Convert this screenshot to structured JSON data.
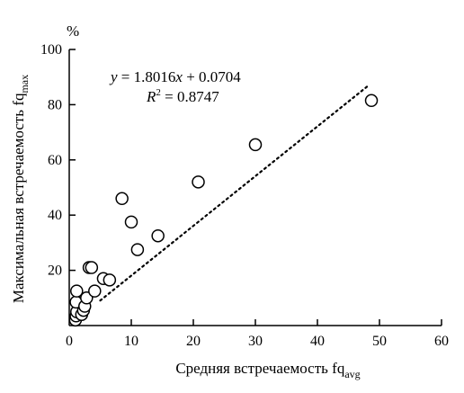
{
  "chart_data": {
    "type": "scatter",
    "title": "",
    "xlabel": "Средняя встречаемость fq",
    "xlabel_sub": "avg",
    "ylabel": "Максимальная встречаемость fq",
    "ylabel_sub": "max",
    "y_unit": "%",
    "xlim": [
      0,
      60
    ],
    "ylim": [
      0,
      100
    ],
    "x_ticks": [
      "0",
      "10",
      "20",
      "30",
      "40",
      "50",
      "60"
    ],
    "y_ticks": [
      "20",
      "40",
      "60",
      "80",
      "100"
    ],
    "grid": false,
    "points": [
      {
        "x": 1.0,
        "y": 2.0
      },
      {
        "x": 1.1,
        "y": 3.5
      },
      {
        "x": 1.2,
        "y": 5.0
      },
      {
        "x": 1.1,
        "y": 8.5
      },
      {
        "x": 1.2,
        "y": 12.5
      },
      {
        "x": 2.0,
        "y": 4.0
      },
      {
        "x": 2.3,
        "y": 5.5
      },
      {
        "x": 2.5,
        "y": 7.0
      },
      {
        "x": 2.8,
        "y": 10.0
      },
      {
        "x": 3.2,
        "y": 21.0
      },
      {
        "x": 3.6,
        "y": 21.0
      },
      {
        "x": 4.1,
        "y": 12.5
      },
      {
        "x": 5.5,
        "y": 17.0
      },
      {
        "x": 6.5,
        "y": 16.5
      },
      {
        "x": 8.5,
        "y": 46.0
      },
      {
        "x": 10.0,
        "y": 37.5
      },
      {
        "x": 11.0,
        "y": 27.5
      },
      {
        "x": 14.3,
        "y": 32.5
      },
      {
        "x": 20.8,
        "y": 52.0
      },
      {
        "x": 30.0,
        "y": 65.5
      },
      {
        "x": 48.7,
        "y": 81.5
      }
    ],
    "trendline": {
      "style": "dotted",
      "slope": 1.8016,
      "intercept": 0.0704,
      "x_range": [
        5.0,
        48.0
      ]
    },
    "annotations": {
      "equation_prefix": "y",
      "equation_rest": " = 1.8016",
      "equation_var": "x",
      "equation_tail": " + 0.0704",
      "r2_label": "R",
      "r2_exp": "2",
      "r2_value": " = 0.8747"
    }
  }
}
